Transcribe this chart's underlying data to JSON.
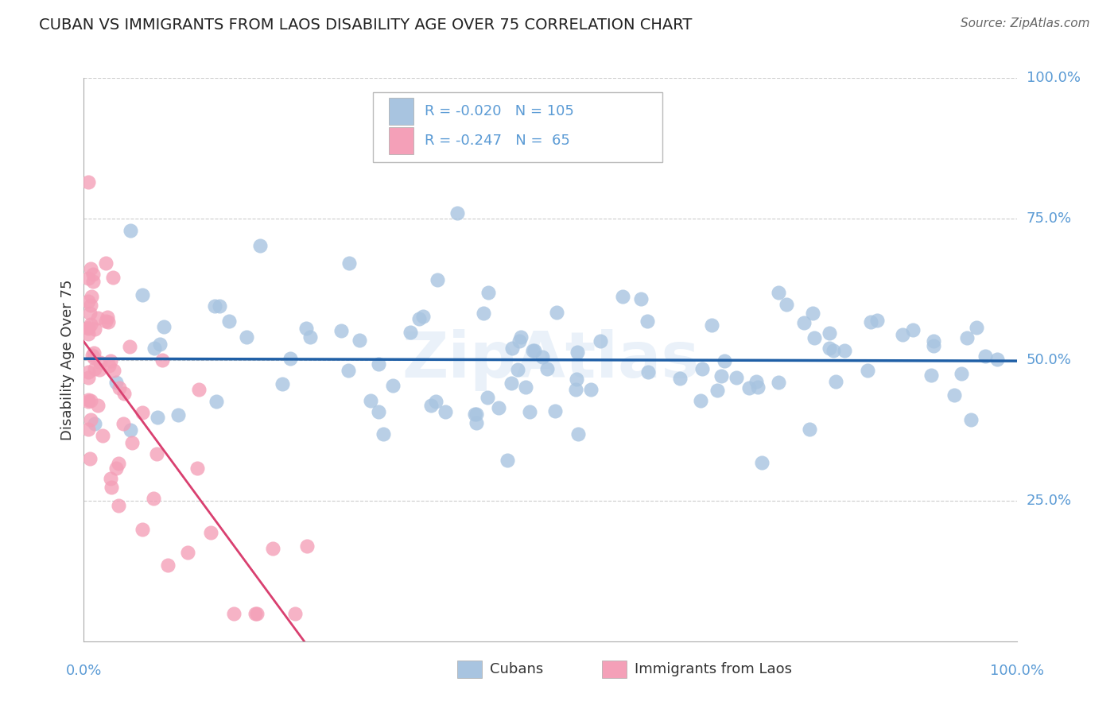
{
  "title": "CUBAN VS IMMIGRANTS FROM LAOS DISABILITY AGE OVER 75 CORRELATION CHART",
  "source": "Source: ZipAtlas.com",
  "ylabel": "Disability Age Over 75",
  "cubans_color": "#a8c4e0",
  "laos_color": "#f4a0b8",
  "trendline_blue_color": "#1f5fa6",
  "trendline_pink_solid_color": "#d94070",
  "trendline_pink_dash_color": "#f0b0c0",
  "legend_blue_r": "R = -0.020",
  "legend_blue_n": "N = 105",
  "legend_pink_r": "R = -0.247",
  "legend_pink_n": "N =  65",
  "legend_label1": "Cubans",
  "legend_label2": "Immigrants from Laos",
  "axis_label_color": "#5b9bd5",
  "grid_color": "#cccccc",
  "title_color": "#222222",
  "source_color": "#666666",
  "watermark_color": "#dce8f5"
}
